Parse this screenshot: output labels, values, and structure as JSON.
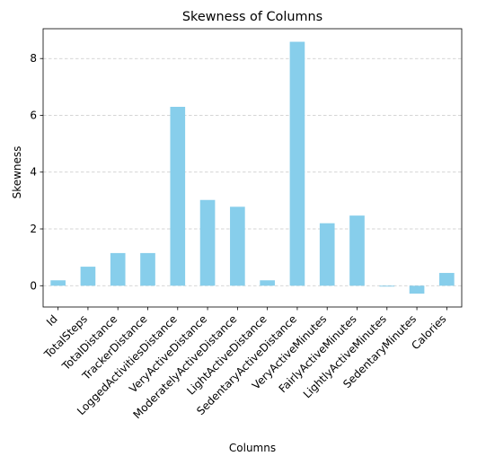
{
  "chart_data": {
    "type": "bar",
    "title": "Skewness of Columns",
    "xlabel": "Columns",
    "ylabel": "Skewness",
    "categories": [
      "Id",
      "TotalSteps",
      "TotalDistance",
      "TrackerDistance",
      "LoggedActivitiesDistance",
      "VeryActiveDistance",
      "ModeratelyActiveDistance",
      "LightActiveDistance",
      "SedentaryActiveDistance",
      "VeryActiveMinutes",
      "FairlyActiveMinutes",
      "LightlyActiveMinutes",
      "SedentaryMinutes",
      "Calories"
    ],
    "values": [
      0.19,
      0.67,
      1.15,
      1.15,
      6.3,
      3.02,
      2.78,
      0.19,
      8.59,
      2.2,
      2.47,
      -0.03,
      -0.28,
      0.45
    ],
    "ylim": [
      -0.75,
      9.05
    ],
    "yticks": [
      0,
      2,
      4,
      6,
      8
    ],
    "grid": "y-dashed",
    "bar_color": "#87ceeb",
    "grid_color": "#c8c8c8"
  }
}
